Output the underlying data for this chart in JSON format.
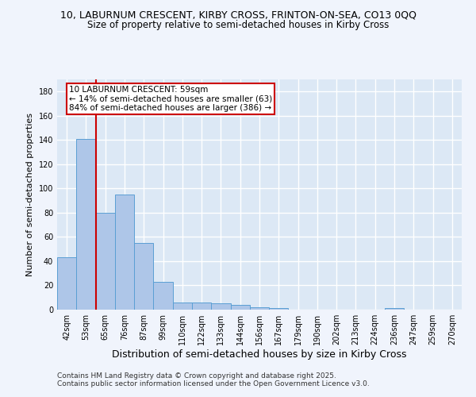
{
  "title1": "10, LABURNUM CRESCENT, KIRBY CROSS, FRINTON-ON-SEA, CO13 0QQ",
  "title2": "Size of property relative to semi-detached houses in Kirby Cross",
  "xlabel": "Distribution of semi-detached houses by size in Kirby Cross",
  "ylabel": "Number of semi-detached properties",
  "bins": [
    "42sqm",
    "53sqm",
    "65sqm",
    "76sqm",
    "87sqm",
    "99sqm",
    "110sqm",
    "122sqm",
    "133sqm",
    "144sqm",
    "156sqm",
    "167sqm",
    "179sqm",
    "190sqm",
    "202sqm",
    "213sqm",
    "224sqm",
    "236sqm",
    "247sqm",
    "259sqm",
    "270sqm"
  ],
  "values": [
    43,
    141,
    80,
    95,
    55,
    23,
    6,
    6,
    5,
    4,
    2,
    1,
    0,
    0,
    0,
    0,
    0,
    1,
    0,
    0,
    0
  ],
  "bar_color": "#aec6e8",
  "bar_edge_color": "#5a9fd4",
  "red_line_x": 1.5,
  "annotation_title": "10 LABURNUM CRESCENT: 59sqm",
  "annotation_line1": "← 14% of semi-detached houses are smaller (63)",
  "annotation_line2": "84% of semi-detached houses are larger (386) →",
  "annotation_box_color": "#ffffff",
  "annotation_box_edge": "#cc0000",
  "red_line_color": "#cc0000",
  "ylim": [
    0,
    190
  ],
  "yticks": [
    0,
    20,
    40,
    60,
    80,
    100,
    120,
    140,
    160,
    180
  ],
  "background_color": "#dce8f5",
  "grid_color": "#ffffff",
  "footer1": "Contains HM Land Registry data © Crown copyright and database right 2025.",
  "footer2": "Contains public sector information licensed under the Open Government Licence v3.0.",
  "title1_fontsize": 9,
  "title2_fontsize": 8.5,
  "xlabel_fontsize": 9,
  "ylabel_fontsize": 8,
  "tick_fontsize": 7,
  "annotation_fontsize": 7.5,
  "footer_fontsize": 6.5
}
